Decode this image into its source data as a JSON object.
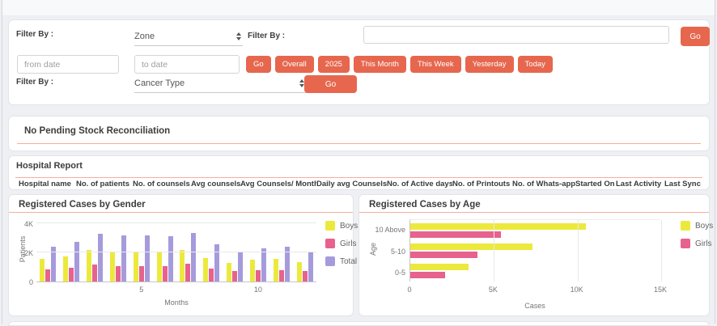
{
  "colors": {
    "accent": "#e6674e",
    "panel_underline": "#f5b09f",
    "boys": "#ece93d",
    "girls": "#e7628d",
    "total": "#a59bdc"
  },
  "filter_panel": {
    "filter_by_label_1": "Filter By :",
    "filter_by_label_2": "Filter By :",
    "filter_by_label_3": "Filter By :",
    "zone_select_value": "Zone",
    "search_input_value": "",
    "search_go_label": "Go",
    "from_date_placeholder": "from date",
    "to_date_placeholder": "to date",
    "quick_filters": [
      "Go",
      "Overall",
      "2025",
      "This Month",
      "This Week",
      "Yesterday",
      "Today"
    ],
    "cancer_type_select_value": "Cancer Type",
    "cancer_go_label": "Go"
  },
  "stock_panel": {
    "message": "No Pending Stock Reconciliation"
  },
  "hospital_panel": {
    "title": "Hospital Report",
    "columns": [
      "Hospital name",
      "No. of patients",
      "No. of counsels",
      "Avg counsels",
      "Avg Counsels/ Month",
      "Daily avg Counsels",
      "No. of Active days",
      "No. of Printouts",
      "No. of Whats-app",
      "Started On",
      "Last Activity",
      "Last Sync"
    ],
    "rows": []
  },
  "chart_data": [
    {
      "type": "bar",
      "title": "Registered Cases by Gender",
      "xlabel": "Months",
      "ylabel": "Patients",
      "categories": [
        1,
        2,
        3,
        4,
        5,
        6,
        7,
        8,
        9,
        10,
        11,
        12
      ],
      "series": [
        {
          "name": "Boys",
          "color": "#ece93d",
          "values": [
            1550,
            1700,
            2150,
            2050,
            2050,
            2050,
            2150,
            1600,
            1300,
            1500,
            1550,
            1350
          ]
        },
        {
          "name": "Girls",
          "color": "#e7628d",
          "values": [
            850,
            950,
            1150,
            1050,
            1050,
            1050,
            1200,
            900,
            720,
            780,
            780,
            700
          ]
        },
        {
          "name": "Total",
          "color": "#a59bdc",
          "values": [
            2400,
            2700,
            3300,
            3150,
            3150,
            3100,
            3350,
            2550,
            2050,
            2300,
            2380,
            2050
          ]
        }
      ],
      "ylim": [
        0,
        4000
      ],
      "yticks": [
        "0",
        "2K",
        "4K"
      ],
      "xticks_shown": [
        "5",
        "10"
      ],
      "grid": true,
      "legend_position": "right"
    },
    {
      "type": "bar",
      "orientation": "horizontal",
      "title": "Registered Cases by Age",
      "xlabel": "Cases",
      "ylabel": "Age",
      "categories": [
        "10 Above",
        "5-10",
        "0-5"
      ],
      "series": [
        {
          "name": "Boys",
          "color": "#ece93d",
          "values": [
            10500,
            7300,
            3500
          ]
        },
        {
          "name": "Girls",
          "color": "#e7628d",
          "values": [
            5400,
            4000,
            2100
          ]
        }
      ],
      "xlim": [
        0,
        15000
      ],
      "xticks": [
        "0",
        "5K",
        "10K",
        "15K"
      ],
      "grid": true,
      "legend_position": "right"
    }
  ]
}
